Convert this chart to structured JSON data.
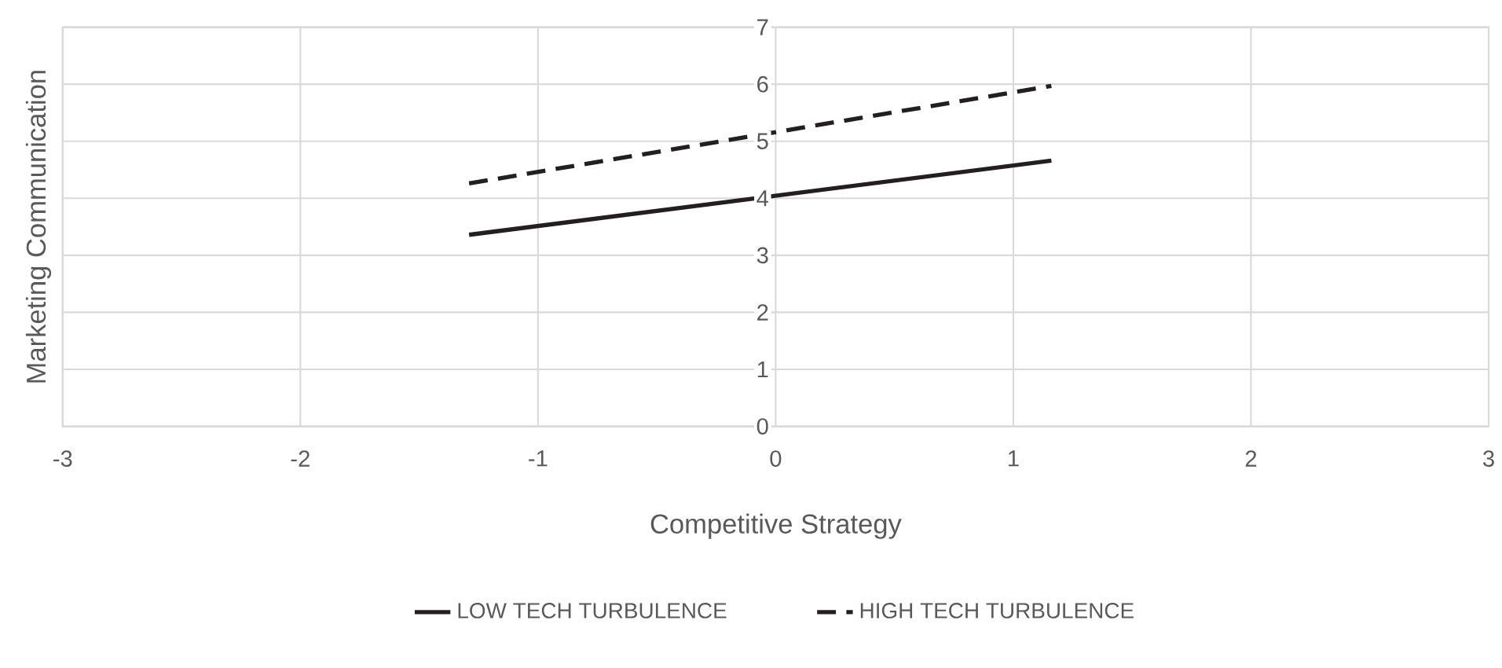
{
  "chart_data": {
    "type": "line",
    "xlabel": "Competitive Strategy",
    "ylabel": "Marketing Communication",
    "x": [
      -1.29,
      1.16
    ],
    "series": [
      {
        "name": "LOW TECH TURBULENCE",
        "color": "#231f20",
        "values": [
          3.36,
          4.66
        ],
        "line_style": "solid"
      },
      {
        "name": "HIGH TECH TURBULENCE",
        "color": "#231f20",
        "values": [
          4.26,
          5.97
        ],
        "line_style": "dashed"
      }
    ],
    "xlim": [
      -3,
      3
    ],
    "ylim": [
      0,
      7
    ],
    "xticks": [
      -3,
      -2,
      -1,
      0,
      1,
      2,
      3
    ],
    "yticks": [
      0,
      1,
      2,
      3,
      4,
      5,
      6,
      7
    ],
    "grid": true,
    "legend": "bottom"
  }
}
